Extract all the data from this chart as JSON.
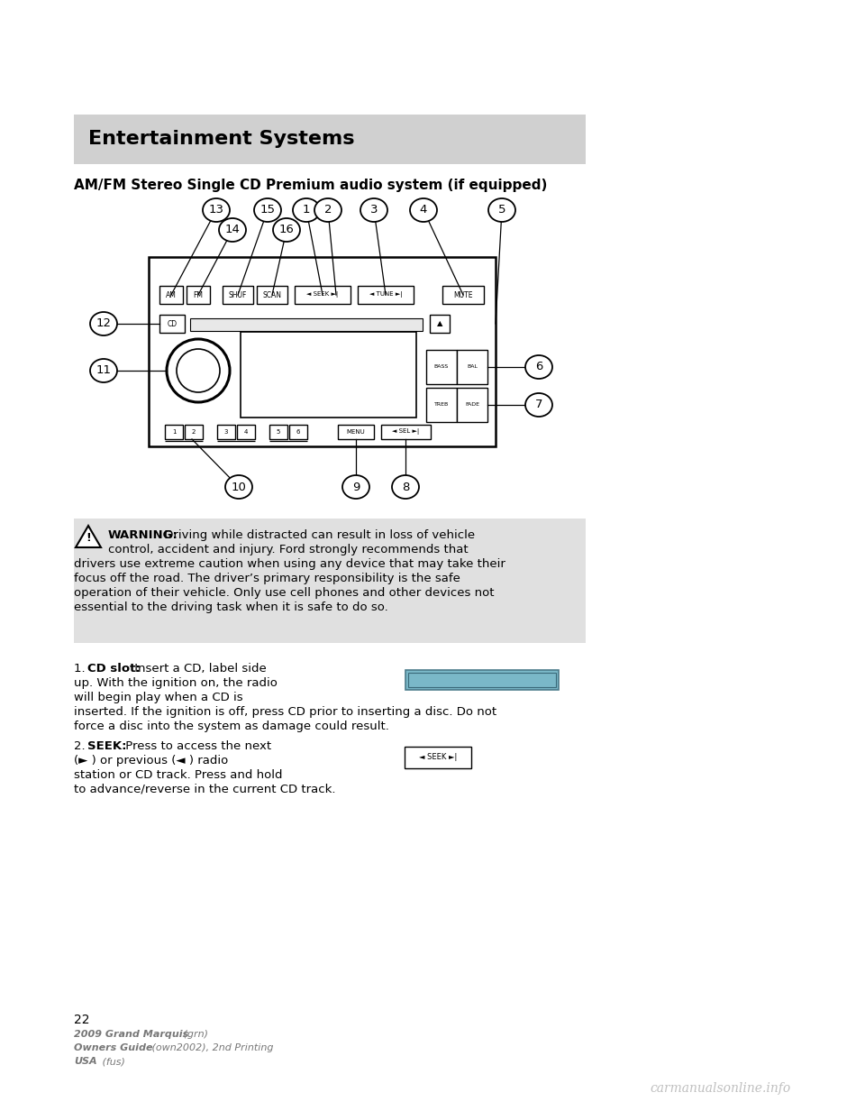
{
  "bg_color": "#ffffff",
  "header_bg": "#d0d0d0",
  "header_text": "Entertainment Systems",
  "section_title": "AM/FM Stereo Single CD Premium audio system (if equipped)",
  "page_number": "22",
  "footer_line1_bold": "2009 Grand Marquis",
  "footer_line1_italic": " (grn)",
  "footer_line2_bold": "Owners Guide",
  "footer_line2_italic": " (own2002), 2nd Printing",
  "footer_line3_bold": "USA",
  "footer_line3_italic": " (fus)",
  "watermark": "carmanualsonline.info",
  "warn_bold": "WARNING:",
  "warn_rest1": " Driving while distracted can result in loss of vehicle",
  "warn_line2": "control, accident and injury. Ford strongly recommends that",
  "warn_line3": "drivers use extreme caution when using any device that may take their",
  "warn_line4": "focus off the road. The driver’s primary responsibility is the safe",
  "warn_line5": "operation of their vehicle. Only use cell phones and other devices not",
  "warn_line6": "essential to the driving task when it is safe to do so.",
  "item1_num": "1.",
  "item1_bold": "CD slot:",
  "item1_l1": " Insert a CD, label side",
  "item1_l2": "up. With the ignition on, the radio",
  "item1_l3": "will begin play when a CD is",
  "item1_l4": "inserted. If the ignition is off, press CD prior to inserting a disc. Do not",
  "item1_l5": "force a disc into the system as damage could result.",
  "item2_num": "2.",
  "item2_bold": "SEEK:",
  "item2_l1": " Press to access the next",
  "item2_l2": "(► ) or previous (◄ ) radio",
  "item2_l3": "station or CD track. Press and hold",
  "item2_l4": "to advance/reverse in the current CD track.",
  "cd_slot_color": "#7ab8c8",
  "seek_btn_text": "◄ SEEK ►|"
}
